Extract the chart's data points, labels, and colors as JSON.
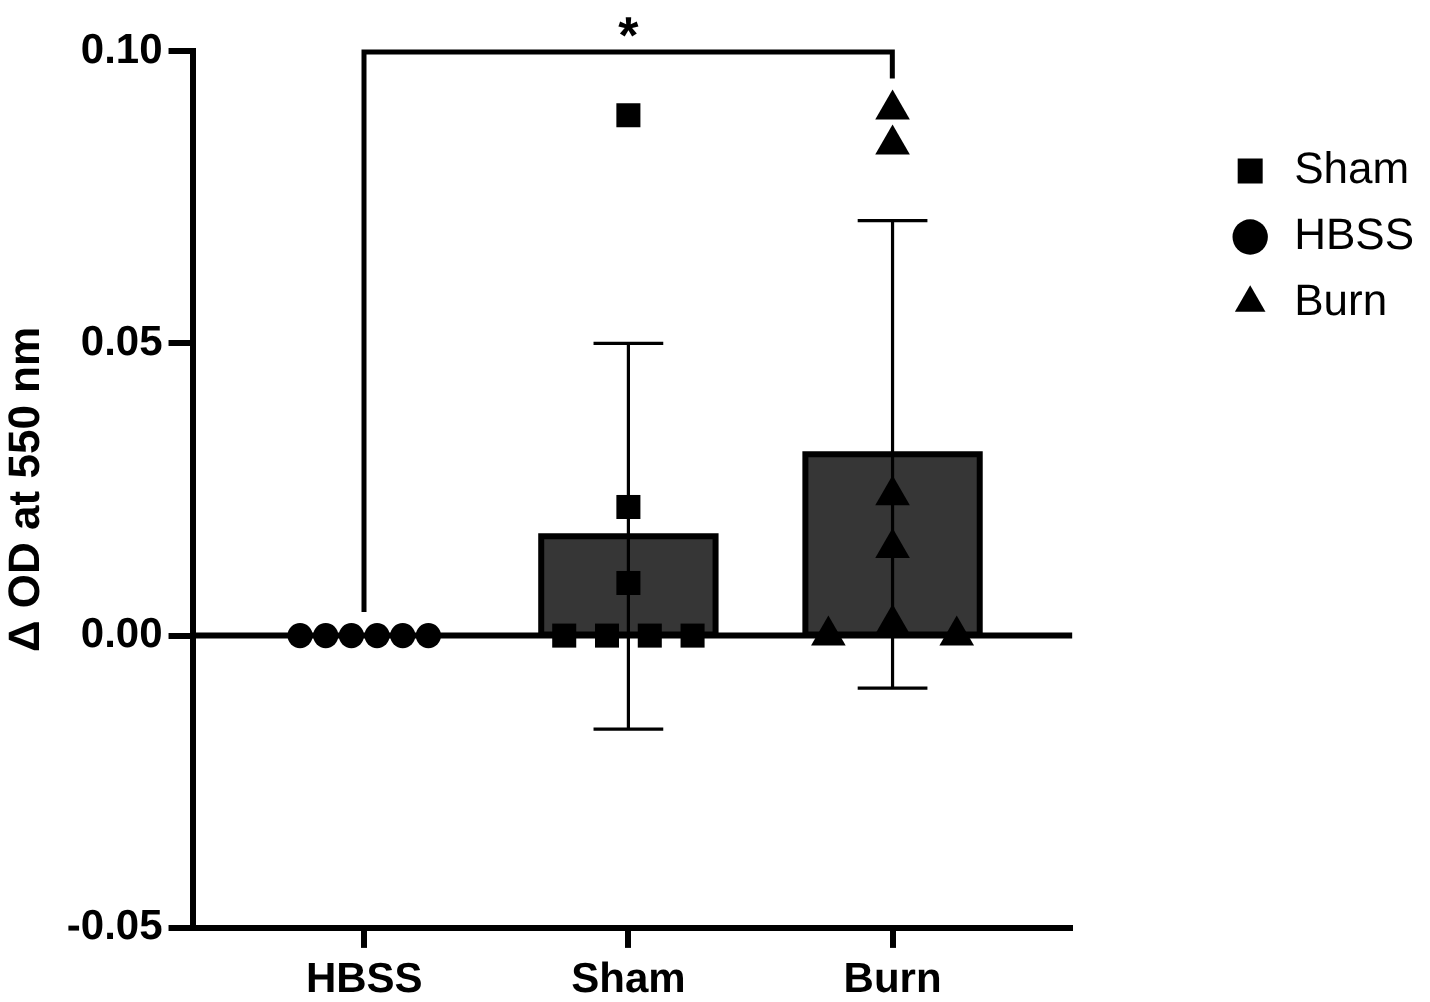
{
  "chart_data": {
    "type": "bar",
    "categories": [
      "HBSS",
      "Sham",
      "Burn"
    ],
    "series": [
      {
        "type": "bar",
        "color": "#363636",
        "values": [
          0,
          0.017,
          0.031
        ],
        "errors": [
          null,
          0.033,
          0.04
        ]
      },
      {
        "type": "scatter",
        "name": "Sham",
        "color": "#000000",
        "marker": "square",
        "x": [
          "Sham",
          "Sham",
          "Sham",
          "Sham",
          "Sham",
          "Sham",
          "Sham"
        ],
        "values": [
          0.089,
          0.022,
          0.009,
          0,
          0,
          0,
          0
        ]
      },
      {
        "type": "scatter",
        "name": "HBSS",
        "color": "#000000",
        "marker": "circle",
        "x": [
          "HBSS",
          "HBSS",
          "HBSS",
          "HBSS",
          "HBSS",
          "HBSS"
        ],
        "values": [
          0,
          0,
          0,
          0,
          0,
          0
        ]
      },
      {
        "type": "scatter",
        "name": "Burn",
        "color": "#000000",
        "marker": "triangle",
        "x": [
          "Burn",
          "Burn",
          "Burn",
          "Burn",
          "Burn",
          "Burn",
          "Burn"
        ],
        "values": [
          0.09,
          0.084,
          0.024,
          0.015,
          0,
          0.002,
          0
        ]
      }
    ],
    "ylabel": "Δ OD at 550 nm",
    "ylim": [
      -0.05,
      0.1
    ],
    "yticks": [
      -0.05,
      {
        "value": 0,
        "label": "0.00"
      },
      0.05,
      {
        "value": 0.1,
        "label": "0.10"
      }
    ],
    "ref_lines": [
      {
        "axis": "y",
        "value": 0
      }
    ],
    "annotations": [
      "*"
    ],
    "grid": false,
    "legend": "top right"
  }
}
